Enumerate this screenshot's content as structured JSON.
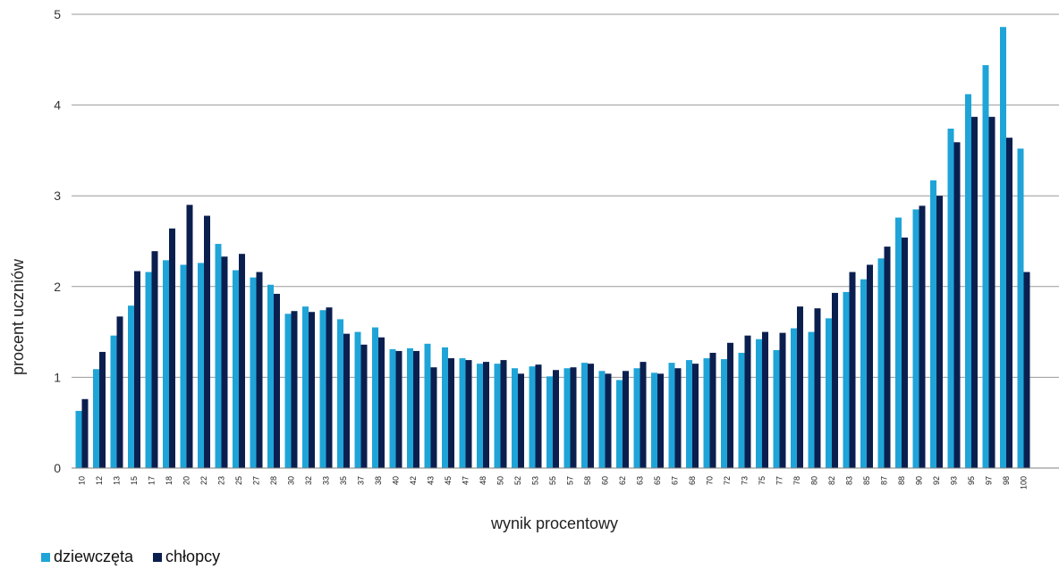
{
  "chart_data": {
    "type": "bar",
    "title": "",
    "xlabel": "wynik procentowy",
    "ylabel": "procent uczniów",
    "ylim": [
      0,
      5
    ],
    "yticks": [
      "0",
      "1",
      "2",
      "3",
      "4",
      "5"
    ],
    "grid": true,
    "legend_position": "bottom-left",
    "categories": [
      "10",
      "12",
      "13",
      "15",
      "17",
      "18",
      "20",
      "22",
      "23",
      "25",
      "27",
      "28",
      "30",
      "32",
      "33",
      "35",
      "37",
      "38",
      "40",
      "42",
      "43",
      "45",
      "47",
      "48",
      "50",
      "52",
      "53",
      "55",
      "57",
      "58",
      "60",
      "62",
      "63",
      "65",
      "67",
      "68",
      "70",
      "72",
      "73",
      "75",
      "77",
      "78",
      "80",
      "82",
      "83",
      "85",
      "87",
      "88",
      "90",
      "92",
      "93",
      "95",
      "97",
      "98",
      "100"
    ],
    "series": [
      {
        "name": "dziewczęta",
        "color": "#1fa4d8",
        "values": [
          0.63,
          1.09,
          1.46,
          1.79,
          2.16,
          2.29,
          2.24,
          2.26,
          2.47,
          2.18,
          2.1,
          2.02,
          1.7,
          1.78,
          1.74,
          1.64,
          1.5,
          1.55,
          1.31,
          1.32,
          1.37,
          1.33,
          1.21,
          1.15,
          1.15,
          1.1,
          1.12,
          1.01,
          1.1,
          1.16,
          1.07,
          0.97,
          1.1,
          1.05,
          1.16,
          1.19,
          1.21,
          1.2,
          1.27,
          1.42,
          1.3,
          1.54,
          1.5,
          1.65,
          1.94,
          2.08,
          2.31,
          2.76,
          2.85,
          3.17,
          3.74,
          4.12,
          4.44,
          4.86,
          3.52
        ]
      },
      {
        "name": "chłopcy",
        "color": "#0b1f4f",
        "values": [
          0.76,
          1.28,
          1.67,
          2.17,
          2.39,
          2.64,
          2.9,
          2.78,
          2.33,
          2.36,
          2.16,
          1.92,
          1.73,
          1.72,
          1.77,
          1.48,
          1.36,
          1.44,
          1.29,
          1.29,
          1.11,
          1.21,
          1.19,
          1.17,
          1.19,
          1.04,
          1.14,
          1.08,
          1.11,
          1.15,
          1.04,
          1.07,
          1.17,
          1.04,
          1.1,
          1.15,
          1.27,
          1.38,
          1.46,
          1.5,
          1.49,
          1.78,
          1.76,
          1.93,
          2.16,
          2.24,
          2.44,
          2.54,
          2.89,
          3.0,
          3.59,
          3.87,
          3.87,
          3.64,
          2.16
        ]
      }
    ]
  }
}
